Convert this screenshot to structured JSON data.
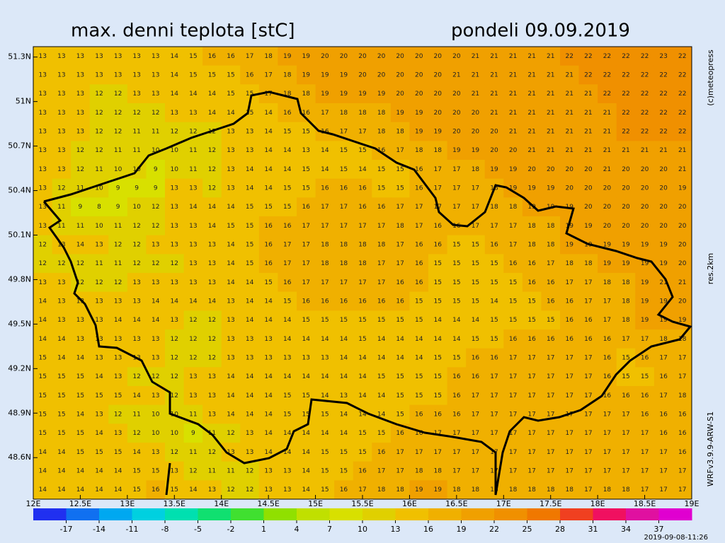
{
  "chart_data": {
    "type": "heatmap",
    "title": "max. denni teplota [stC]",
    "subtitle": "pondeli 09.09.2019",
    "credit": "(c)meteopress",
    "resolution": "res.2km",
    "model": "WRFv3.9.9-ARW-S1",
    "timestamp": "2019-09-08-11:26",
    "xlim": [
      12,
      19
    ],
    "ylim": [
      48.32,
      51.37
    ],
    "xticks": [
      {
        "value": 12,
        "label": "12E"
      },
      {
        "value": 12.5,
        "label": "12.5E"
      },
      {
        "value": 13,
        "label": "13E"
      },
      {
        "value": 13.5,
        "label": "13.5E"
      },
      {
        "value": 14,
        "label": "14E"
      },
      {
        "value": 14.5,
        "label": "14.5E"
      },
      {
        "value": 15,
        "label": "15E"
      },
      {
        "value": 15.5,
        "label": "15.5E"
      },
      {
        "value": 16,
        "label": "16E"
      },
      {
        "value": 16.5,
        "label": "16.5E"
      },
      {
        "value": 17,
        "label": "17E"
      },
      {
        "value": 17.5,
        "label": "17.5E"
      },
      {
        "value": 18,
        "label": "18E"
      },
      {
        "value": 18.5,
        "label": "18.5E"
      },
      {
        "value": 19,
        "label": "19E"
      }
    ],
    "yticks": [
      {
        "value": 48.6,
        "label": "48.6N"
      },
      {
        "value": 48.9,
        "label": "48.9N"
      },
      {
        "value": 49.2,
        "label": "49.2N"
      },
      {
        "value": 49.5,
        "label": "49.5N"
      },
      {
        "value": 49.8,
        "label": "49.8N"
      },
      {
        "value": 50.1,
        "label": "50.1N"
      },
      {
        "value": 50.4,
        "label": "50.4N"
      },
      {
        "value": 50.7,
        "label": "50.7N"
      },
      {
        "value": 51,
        "label": "51N"
      },
      {
        "value": 51.3,
        "label": "51.3N"
      }
    ],
    "colorbar": {
      "ticks": [
        -17,
        -14,
        -11,
        -8,
        -5,
        -2,
        1,
        4,
        7,
        10,
        13,
        16,
        19,
        22,
        25,
        28,
        31,
        34,
        37
      ],
      "colors": [
        "#2030f0",
        "#1070f0",
        "#00a8f0",
        "#00d0e0",
        "#00e0b0",
        "#10e070",
        "#40e030",
        "#90e000",
        "#c0e000",
        "#d8e000",
        "#e0d000",
        "#f0c000",
        "#f0b000",
        "#f0a000",
        "#f09000",
        "#f07800",
        "#f04020",
        "#f01060",
        "#e010a0",
        "#e000d0"
      ]
    },
    "values": [
      [
        13,
        13,
        13,
        13,
        13,
        13,
        13,
        14,
        15,
        16,
        16,
        17,
        18,
        19,
        19,
        20,
        20,
        20,
        20,
        20,
        20,
        20,
        20,
        21,
        21,
        21,
        21,
        21,
        22,
        22,
        22,
        22,
        22,
        23,
        22
      ],
      [
        13,
        13,
        13,
        13,
        13,
        13,
        13,
        14,
        15,
        15,
        15,
        16,
        17,
        18,
        19,
        19,
        19,
        20,
        20,
        20,
        20,
        20,
        21,
        21,
        21,
        21,
        21,
        21,
        21,
        22,
        22,
        22,
        22,
        22,
        22
      ],
      [
        13,
        13,
        13,
        12,
        12,
        13,
        13,
        14,
        14,
        14,
        15,
        15,
        17,
        18,
        18,
        19,
        19,
        19,
        19,
        20,
        20,
        20,
        20,
        21,
        21,
        21,
        21,
        21,
        21,
        21,
        22,
        22,
        22,
        22,
        22
      ],
      [
        13,
        13,
        13,
        12,
        12,
        12,
        12,
        13,
        13,
        14,
        14,
        15,
        14,
        16,
        16,
        17,
        18,
        18,
        18,
        19,
        19,
        20,
        20,
        20,
        21,
        21,
        21,
        21,
        21,
        21,
        21,
        22,
        22,
        22,
        22
      ],
      [
        13,
        13,
        13,
        12,
        12,
        11,
        11,
        12,
        12,
        12,
        13,
        13,
        14,
        15,
        15,
        16,
        17,
        17,
        18,
        18,
        19,
        19,
        20,
        20,
        20,
        21,
        21,
        21,
        21,
        21,
        21,
        22,
        22,
        22,
        22
      ],
      [
        13,
        13,
        12,
        12,
        11,
        11,
        10,
        10,
        11,
        12,
        13,
        13,
        14,
        14,
        13,
        14,
        15,
        15,
        16,
        17,
        18,
        18,
        19,
        19,
        20,
        20,
        21,
        21,
        21,
        21,
        21,
        21,
        21,
        21,
        21
      ],
      [
        13,
        13,
        12,
        11,
        10,
        10,
        9,
        10,
        11,
        12,
        13,
        14,
        14,
        14,
        15,
        14,
        15,
        14,
        15,
        15,
        16,
        17,
        17,
        18,
        19,
        19,
        20,
        20,
        20,
        20,
        21,
        20,
        20,
        20,
        21
      ],
      [
        13,
        12,
        11,
        10,
        9,
        9,
        9,
        13,
        13,
        12,
        13,
        14,
        14,
        15,
        15,
        16,
        16,
        16,
        15,
        15,
        16,
        17,
        17,
        17,
        18,
        19,
        19,
        19,
        20,
        20,
        20,
        20,
        20,
        20,
        19
      ],
      [
        13,
        11,
        9,
        8,
        9,
        10,
        12,
        13,
        14,
        14,
        14,
        15,
        15,
        15,
        16,
        17,
        17,
        16,
        16,
        17,
        17,
        17,
        17,
        17,
        18,
        18,
        19,
        19,
        19,
        20,
        20,
        20,
        20,
        20,
        20
      ],
      [
        13,
        11,
        11,
        10,
        11,
        12,
        12,
        13,
        13,
        14,
        15,
        15,
        16,
        16,
        17,
        17,
        17,
        17,
        17,
        18,
        17,
        16,
        16,
        17,
        17,
        17,
        18,
        18,
        19,
        19,
        20,
        20,
        20,
        20,
        20
      ],
      [
        12,
        13,
        14,
        13,
        12,
        12,
        13,
        13,
        13,
        13,
        14,
        15,
        16,
        17,
        17,
        18,
        18,
        18,
        18,
        17,
        16,
        16,
        15,
        15,
        16,
        17,
        18,
        18,
        19,
        19,
        19,
        19,
        19,
        19,
        20
      ],
      [
        12,
        12,
        12,
        11,
        11,
        12,
        12,
        12,
        13,
        13,
        14,
        15,
        16,
        17,
        17,
        18,
        18,
        18,
        17,
        17,
        16,
        15,
        15,
        15,
        15,
        16,
        16,
        17,
        18,
        18,
        19,
        19,
        19,
        19,
        20
      ],
      [
        13,
        13,
        12,
        12,
        12,
        13,
        13,
        13,
        13,
        13,
        14,
        14,
        15,
        16,
        17,
        17,
        17,
        17,
        17,
        16,
        16,
        15,
        15,
        15,
        15,
        15,
        16,
        16,
        17,
        17,
        18,
        18,
        19,
        21,
        21
      ],
      [
        14,
        13,
        13,
        13,
        13,
        13,
        14,
        14,
        14,
        14,
        13,
        14,
        14,
        15,
        16,
        16,
        16,
        16,
        16,
        16,
        15,
        15,
        15,
        15,
        14,
        15,
        15,
        16,
        16,
        17,
        17,
        18,
        19,
        19,
        20
      ],
      [
        14,
        13,
        13,
        13,
        14,
        14,
        14,
        13,
        12,
        12,
        13,
        14,
        14,
        14,
        15,
        15,
        15,
        15,
        15,
        15,
        15,
        14,
        14,
        14,
        15,
        15,
        15,
        15,
        16,
        16,
        17,
        18,
        19,
        19,
        19
      ],
      [
        14,
        14,
        13,
        13,
        13,
        13,
        13,
        12,
        12,
        12,
        13,
        13,
        13,
        14,
        14,
        14,
        14,
        15,
        14,
        14,
        14,
        14,
        14,
        15,
        15,
        16,
        16,
        16,
        16,
        16,
        16,
        17,
        17,
        18,
        18
      ],
      [
        15,
        14,
        14,
        13,
        13,
        13,
        13,
        12,
        12,
        12,
        13,
        13,
        13,
        13,
        13,
        13,
        14,
        14,
        14,
        14,
        14,
        15,
        15,
        16,
        16,
        17,
        17,
        17,
        17,
        17,
        16,
        15,
        16,
        17,
        17
      ],
      [
        15,
        15,
        15,
        14,
        13,
        12,
        12,
        12,
        13,
        13,
        14,
        14,
        14,
        14,
        14,
        14,
        14,
        14,
        15,
        15,
        15,
        15,
        16,
        16,
        17,
        17,
        17,
        17,
        17,
        17,
        16,
        15,
        15,
        16,
        17
      ],
      [
        15,
        15,
        15,
        15,
        15,
        14,
        13,
        12,
        13,
        13,
        14,
        14,
        14,
        15,
        15,
        14,
        13,
        14,
        14,
        15,
        15,
        15,
        16,
        17,
        17,
        17,
        17,
        17,
        17,
        17,
        16,
        16,
        16,
        17,
        18
      ],
      [
        15,
        15,
        14,
        13,
        12,
        11,
        10,
        10,
        11,
        13,
        14,
        14,
        14,
        15,
        15,
        15,
        14,
        14,
        14,
        15,
        16,
        16,
        16,
        17,
        17,
        17,
        17,
        17,
        17,
        17,
        17,
        17,
        16,
        16,
        16
      ],
      [
        15,
        15,
        15,
        14,
        13,
        12,
        10,
        10,
        9,
        11,
        12,
        13,
        14,
        14,
        14,
        14,
        14,
        15,
        15,
        16,
        16,
        17,
        17,
        17,
        17,
        17,
        17,
        17,
        17,
        17,
        17,
        17,
        17,
        16,
        16
      ],
      [
        14,
        14,
        15,
        15,
        15,
        14,
        13,
        12,
        11,
        12,
        13,
        13,
        14,
        14,
        14,
        15,
        15,
        15,
        16,
        17,
        17,
        17,
        17,
        17,
        17,
        17,
        17,
        17,
        17,
        17,
        17,
        17,
        17,
        17,
        16
      ],
      [
        14,
        14,
        14,
        14,
        14,
        15,
        15,
        13,
        12,
        11,
        11,
        12,
        13,
        13,
        14,
        15,
        15,
        16,
        17,
        17,
        18,
        18,
        17,
        17,
        17,
        17,
        17,
        17,
        17,
        17,
        17,
        17,
        17,
        17,
        17
      ],
      [
        14,
        14,
        14,
        14,
        14,
        15,
        16,
        15,
        14,
        13,
        12,
        12,
        13,
        13,
        14,
        15,
        16,
        17,
        18,
        18,
        19,
        19,
        18,
        18,
        18,
        18,
        18,
        18,
        18,
        17,
        18,
        18,
        17,
        17,
        17
      ]
    ]
  }
}
